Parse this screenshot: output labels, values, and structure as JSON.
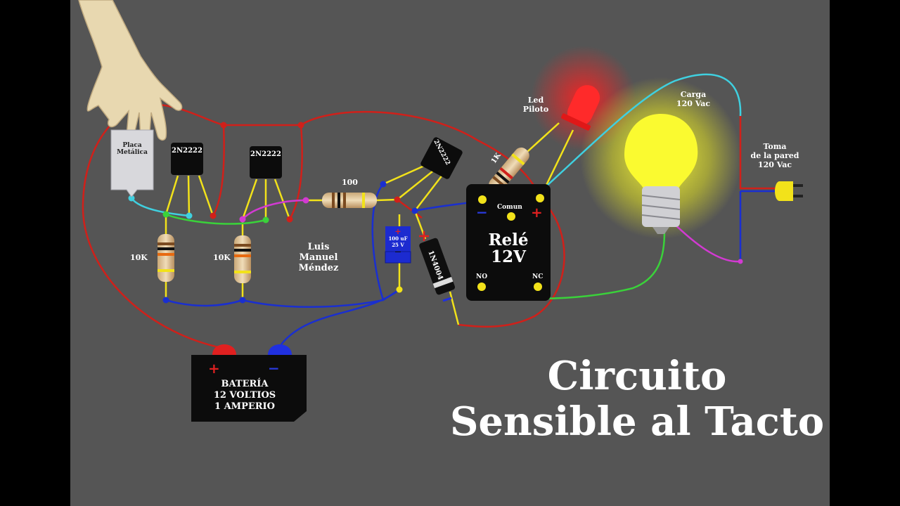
{
  "title_line1": "Circuito",
  "title_line2": "Sensible al Tacto",
  "author": [
    "Luis",
    "Manuel",
    "Méndez"
  ],
  "plate_label": [
    "Placa",
    "Metálica"
  ],
  "transistor_label": "2N2222",
  "resistor_10k": "10K",
  "resistor_100": "100",
  "resistor_1k": "1K",
  "capacitor_label": [
    "100 uF",
    "25 V"
  ],
  "capacitor_plus": "+",
  "capacitor_minus": "—",
  "diode_label": "1N4004",
  "led_label": [
    "Led",
    "Piloto"
  ],
  "load_label": [
    "Carga",
    "120 Vac"
  ],
  "outlet_label": [
    "Toma",
    "de la pared",
    "120 Vac"
  ],
  "relay": {
    "title": "Relé",
    "voltage": "12V",
    "common": "Comun",
    "no": "NO",
    "nc": "NC",
    "minus": "−",
    "plus": "+"
  },
  "battery": {
    "line1": "BATERÍA",
    "line2": "12 VOLTIOS",
    "line3": "1 AMPERIO",
    "plus": "+",
    "minus": "−"
  },
  "colors": {
    "background": "#555555",
    "wire_red": "#d0201a",
    "wire_blue": "#1a2fd0",
    "wire_yellow": "#f2e21a",
    "wire_cyan": "#3fd0e0",
    "wire_green": "#3ad23a",
    "wire_magenta": "#d23ad2"
  }
}
